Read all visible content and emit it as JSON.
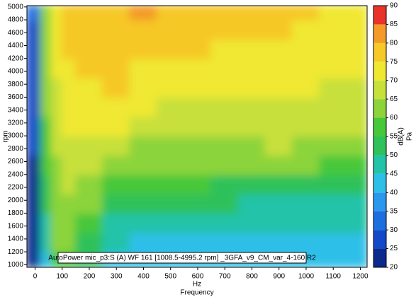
{
  "chart_data": {
    "type": "heatmap",
    "annotation": "AutoPower mic_p3:S (A) WF 161 [1008.5-4995.2 rpm] _3GFA_v9_CM_var_4-160 R2",
    "x_label": "Hz",
    "x_title": "Frequency",
    "y_label": "rpm",
    "xlim": [
      -30,
      1225
    ],
    "ylim": [
      960,
      5020
    ],
    "xticks": [
      0,
      100,
      200,
      300,
      400,
      500,
      600,
      700,
      800,
      900,
      1000,
      1100,
      1200
    ],
    "yticks": [
      1000,
      1200,
      1400,
      1600,
      1800,
      2000,
      2200,
      2400,
      2600,
      2800,
      3000,
      3200,
      3400,
      3600,
      3800,
      4000,
      4200,
      4400,
      4600,
      4800,
      5000
    ],
    "xbins": [
      -30,
      20,
      60,
      100,
      150,
      250,
      350,
      450,
      550,
      650,
      750,
      850,
      950,
      1050,
      1150,
      1225
    ],
    "ybins": [
      960,
      1200,
      1500,
      1800,
      2100,
      2400,
      2700,
      3000,
      3300,
      3600,
      3900,
      4200,
      4500,
      4800,
      5020
    ],
    "z": [
      [
        22,
        42,
        55,
        55,
        50,
        42,
        40,
        42,
        42,
        40,
        42,
        42,
        40,
        42,
        40
      ],
      [
        22,
        45,
        60,
        60,
        52,
        45,
        44,
        44,
        44,
        44,
        44,
        44,
        44,
        44,
        44
      ],
      [
        22,
        48,
        60,
        62,
        55,
        48,
        47,
        47,
        47,
        46,
        46,
        46,
        46,
        46,
        45
      ],
      [
        23,
        50,
        62,
        63,
        60,
        52,
        50,
        50,
        50,
        50,
        49,
        49,
        49,
        48,
        48
      ],
      [
        23,
        52,
        63,
        65,
        63,
        56,
        55,
        55,
        55,
        54,
        54,
        54,
        54,
        52,
        52
      ],
      [
        24,
        55,
        64,
        67,
        66,
        62,
        60,
        60,
        60,
        60,
        60,
        60,
        60,
        58,
        58
      ],
      [
        25,
        57,
        65,
        68,
        68,
        66,
        64,
        64,
        64,
        63,
        63,
        65,
        64,
        62,
        62
      ],
      [
        26,
        58,
        66,
        70,
        70,
        70,
        67,
        67,
        67,
        66,
        66,
        67,
        66,
        65,
        65
      ],
      [
        26,
        60,
        68,
        72,
        73,
        74,
        70,
        69,
        69,
        68,
        68,
        69,
        68,
        67,
        67
      ],
      [
        27,
        60,
        68,
        72,
        74,
        76,
        72,
        71,
        71,
        70,
        70,
        70,
        70,
        69,
        69
      ],
      [
        28,
        62,
        70,
        74,
        75,
        77,
        74,
        73,
        73,
        72,
        72,
        72,
        72,
        71,
        71
      ],
      [
        28,
        62,
        70,
        75,
        76,
        78,
        76,
        75,
        75,
        74,
        74,
        74,
        73,
        73,
        72
      ],
      [
        29,
        63,
        70,
        75,
        77,
        78,
        78,
        77,
        77,
        76,
        75,
        75,
        74,
        74,
        73
      ],
      [
        30,
        64,
        70,
        75,
        77,
        79,
        80,
        78,
        78,
        77,
        76,
        75,
        75,
        74,
        74
      ]
    ],
    "colorbar": {
      "label": "dB(A)",
      "unit": "Pa",
      "ticks": [
        20,
        25,
        30,
        35,
        40,
        45,
        50,
        55,
        60,
        65,
        70,
        75,
        80,
        85,
        90
      ],
      "colors": [
        "#0b2a8c",
        "#1348c8",
        "#1d6fe0",
        "#2a98ec",
        "#2dbfe8",
        "#22c3a8",
        "#2fc15a",
        "#46c83a",
        "#8cd43a",
        "#c8e03a",
        "#f0e830",
        "#f6c828",
        "#f39a28",
        "#e8322a"
      ]
    }
  }
}
